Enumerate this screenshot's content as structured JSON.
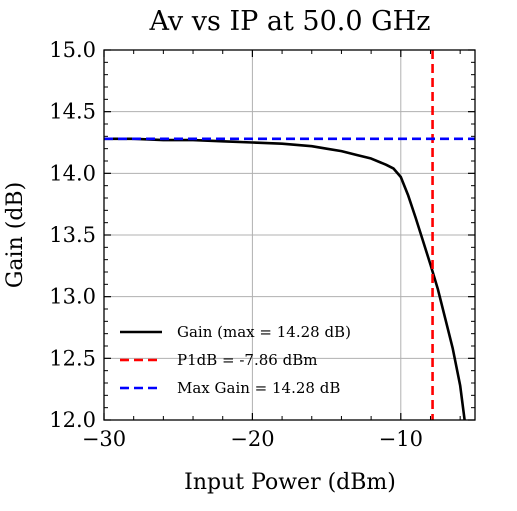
{
  "chart_data": {
    "type": "line",
    "title": "Av vs IP at 50.0 GHz",
    "xlabel": "Input Power (dBm)",
    "ylabel": "Gain (dB)",
    "xlim": [
      -30,
      -5
    ],
    "ylim": [
      12.0,
      15.0
    ],
    "xticks": [
      -30,
      -20,
      -10
    ],
    "xtick_labels": [
      "−30",
      "−20",
      "−10"
    ],
    "yticks": [
      12.0,
      12.5,
      13.0,
      13.5,
      14.0,
      14.5,
      15.0
    ],
    "ytick_labels": [
      "12.0",
      "12.5",
      "13.0",
      "13.5",
      "14.0",
      "14.5",
      "15.0"
    ],
    "grid": true,
    "legend_position": "lower-left",
    "series": [
      {
        "name": "Gain (max = 14.28 dB)",
        "style": "solid",
        "color": "#000000",
        "x": [
          -30,
          -28,
          -26,
          -24,
          -22,
          -20,
          -18,
          -16,
          -15,
          -14,
          -13,
          -12,
          -11,
          -10.5,
          -10,
          -9.5,
          -9,
          -8.5,
          -8,
          -7.5,
          -7,
          -6.5,
          -6,
          -5.7
        ],
        "y": [
          14.28,
          14.28,
          14.27,
          14.27,
          14.26,
          14.25,
          14.24,
          14.22,
          14.2,
          14.18,
          14.15,
          14.12,
          14.07,
          14.04,
          13.97,
          13.82,
          13.64,
          13.45,
          13.26,
          13.06,
          12.82,
          12.58,
          12.28,
          12.0
        ]
      },
      {
        "name": "P1dB = -7.86 dBm",
        "style": "dashed",
        "color": "#ff0000",
        "orientation": "vertical",
        "x": -7.86
      },
      {
        "name": "Max Gain = 14.28 dB",
        "style": "dashed",
        "color": "#0000ff",
        "orientation": "horizontal",
        "y": 14.28
      }
    ]
  }
}
